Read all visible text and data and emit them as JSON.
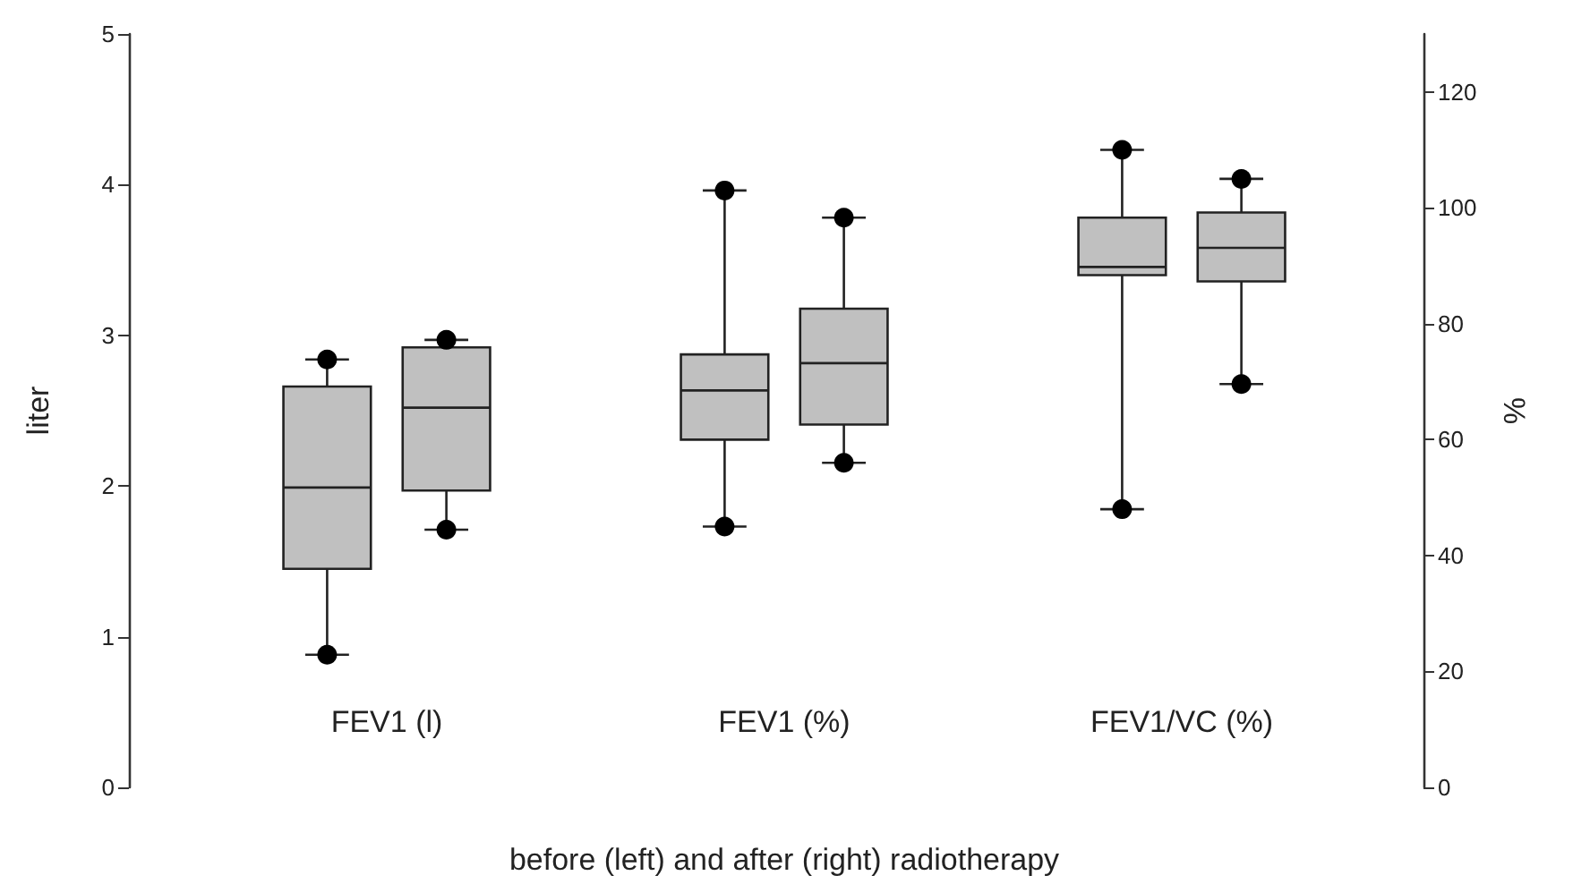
{
  "chart_data": {
    "type": "box",
    "categories": [
      "FEV1 (l)",
      "FEV1 (%)",
      "FEV1/VC (%)"
    ],
    "xlabel": "before (left) and after (right) radiotherapy",
    "ylabel": "liter",
    "y2label": "%",
    "ylim": [
      0,
      5
    ],
    "yticks": [
      0,
      1,
      2,
      3,
      4,
      5
    ],
    "y2lim": [
      0,
      130
    ],
    "y2ticks": [
      0,
      20,
      40,
      60,
      80,
      100,
      120
    ],
    "grid": false,
    "marker": "circle",
    "series": [
      {
        "color": "#c0c0c0",
        "axis": "y",
        "boxes": [
          {
            "low": 0.88,
            "q1": 1.45,
            "median": 1.99,
            "q3": 2.66,
            "high": 2.84,
            "outliers": [
              0.88,
              2.84
            ]
          },
          null,
          null
        ]
      },
      {
        "color": "#c0c0c0",
        "axis": "y",
        "boxes": [
          {
            "low": 1.71,
            "q1": 1.97,
            "median": 2.52,
            "q3": 2.92,
            "high": 2.97,
            "outliers": [
              1.71,
              2.97
            ]
          },
          null,
          null
        ]
      },
      {
        "color": "#c0c0c0",
        "axis": "y2",
        "boxes": [
          null,
          {
            "low": 45,
            "q1": 60,
            "median": 68.5,
            "q3": 74.7,
            "high": 103,
            "outliers": [
              45,
              103
            ]
          },
          {
            "low": 48,
            "q1": 88.4,
            "median": 89.8,
            "q3": 98.3,
            "high": 110,
            "outliers": [
              48,
              110
            ]
          }
        ]
      },
      {
        "color": "#c0c0c0",
        "axis": "y2",
        "boxes": [
          null,
          {
            "low": 56,
            "q1": 62.6,
            "median": 73.2,
            "q3": 82.6,
            "high": 98.3,
            "outliers": [
              56,
              98.3
            ]
          },
          {
            "low": 69.6,
            "q1": 87.3,
            "median": 93.1,
            "q3": 99.2,
            "high": 105,
            "outliers": [
              69.6,
              105
            ]
          }
        ]
      }
    ]
  }
}
